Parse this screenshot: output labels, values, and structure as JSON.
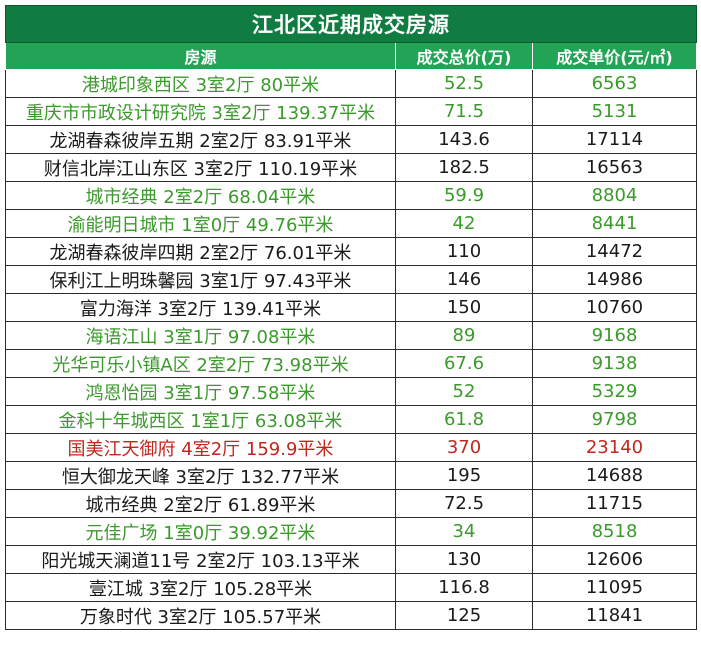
{
  "title": "江北区近期成交房源",
  "headers": [
    "房源",
    "成交总价(万)",
    "成交单价(元/㎡)"
  ],
  "colors": {
    "title_bg": "#107c41",
    "header_bg": "#22a355",
    "green_text": "#3a9a2a",
    "red_text": "#c0271e",
    "default_text": "#1a1a1a"
  },
  "rows": [
    {
      "name": "港城印象西区 3室2厅 80平米",
      "total": "52.5",
      "unit": "6563",
      "tone": "green"
    },
    {
      "name": "重庆市市政设计研究院 3室2厅 139.37平米",
      "total": "71.5",
      "unit": "5131",
      "tone": "green"
    },
    {
      "name": "龙湖春森彼岸五期 2室2厅 83.91平米",
      "total": "143.6",
      "unit": "17114",
      "tone": "default"
    },
    {
      "name": "财信北岸江山东区 3室2厅 110.19平米",
      "total": "182.5",
      "unit": "16563",
      "tone": "default"
    },
    {
      "name": "城市经典 2室2厅 68.04平米",
      "total": "59.9",
      "unit": "8804",
      "tone": "green"
    },
    {
      "name": "渝能明日城市 1室0厅 49.76平米",
      "total": "42",
      "unit": "8441",
      "tone": "green"
    },
    {
      "name": "龙湖春森彼岸四期 2室2厅 76.01平米",
      "total": "110",
      "unit": "14472",
      "tone": "default"
    },
    {
      "name": "保利江上明珠馨园 3室1厅 97.43平米",
      "total": "146",
      "unit": "14986",
      "tone": "default"
    },
    {
      "name": "富力海洋 3室2厅 139.41平米",
      "total": "150",
      "unit": "10760",
      "tone": "default"
    },
    {
      "name": "海语江山 3室1厅 97.08平米",
      "total": "89",
      "unit": "9168",
      "tone": "green"
    },
    {
      "name": "光华可乐小镇A区 2室2厅 73.98平米",
      "total": "67.6",
      "unit": "9138",
      "tone": "green"
    },
    {
      "name": "鸿恩怡园 3室1厅 97.58平米",
      "total": "52",
      "unit": "5329",
      "tone": "green"
    },
    {
      "name": "金科十年城西区 1室1厅 63.08平米",
      "total": "61.8",
      "unit": "9798",
      "tone": "green"
    },
    {
      "name": "国美江天御府 4室2厅 159.9平米",
      "total": "370",
      "unit": "23140",
      "tone": "red"
    },
    {
      "name": "恒大御龙天峰 3室2厅 132.77平米",
      "total": "195",
      "unit": "14688",
      "tone": "default"
    },
    {
      "name": "城市经典 2室2厅 61.89平米",
      "total": "72.5",
      "unit": "11715",
      "tone": "default"
    },
    {
      "name": "元佳广场 1室0厅 39.92平米",
      "total": "34",
      "unit": "8518",
      "tone": "green"
    },
    {
      "name": "阳光城天澜道11号 2室2厅 103.13平米",
      "total": "130",
      "unit": "12606",
      "tone": "default"
    },
    {
      "name": "壹江城 3室2厅 105.28平米",
      "total": "116.8",
      "unit": "11095",
      "tone": "default"
    },
    {
      "name": "万象时代 3室2厅 105.57平米",
      "total": "125",
      "unit": "11841",
      "tone": "default"
    }
  ]
}
